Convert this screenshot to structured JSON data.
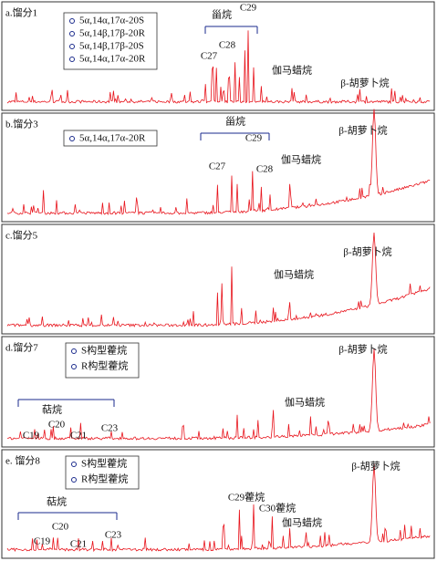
{
  "panels": [
    {
      "label": "a.馏分1",
      "legend": [
        "5α,14α,17α-20S",
        "5α,14β,17β-20R",
        "5α,14β,17β-20S",
        "5α,14α,17α-20R"
      ],
      "annotations": [
        "甾烷",
        "C29",
        "C28",
        "C27",
        "伽马蜡烷",
        "β-胡萝卜烷"
      ]
    },
    {
      "label": "b.馏分3",
      "legend": [
        "5α,14α,17α-20R"
      ],
      "annotations": [
        "甾烷",
        "C29",
        "C27",
        "C28",
        "伽马蜡烷",
        "β-胡萝卜烷"
      ]
    },
    {
      "label": "c.馏分5",
      "legend": [],
      "annotations": [
        "伽马蜡烷",
        "β-胡萝卜烷"
      ]
    },
    {
      "label": "d.馏分7",
      "legend": [
        "S构型藿烷",
        "R构型藿烷"
      ],
      "annotations": [
        "萜烷",
        "C19",
        "C20",
        "C21",
        "C23",
        "伽马蜡烷",
        "β-胡萝卜烷"
      ]
    },
    {
      "label": "e. 馏分8",
      "legend": [
        "S构型藿烷",
        "R构型藿烷"
      ],
      "annotations": [
        "萜烷",
        "C19",
        "C20",
        "C21",
        "C23",
        "C29藿烷",
        "C30藿烷",
        "伽马蜡烷",
        "β-胡萝卜烷"
      ]
    }
  ]
}
